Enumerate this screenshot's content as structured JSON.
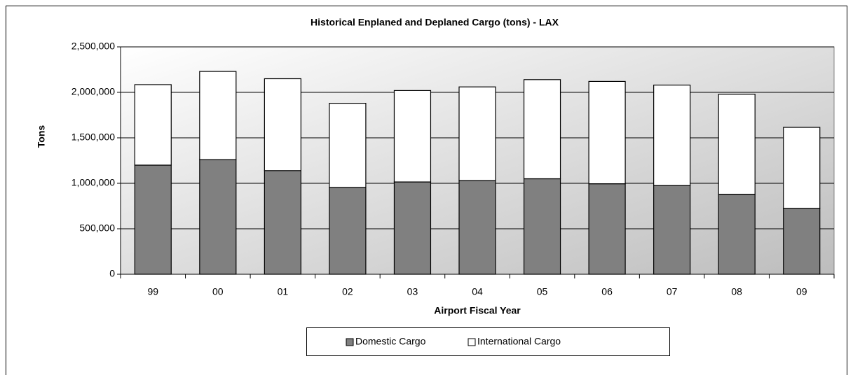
{
  "chart_data": {
    "type": "stacked_bar",
    "title": "Historical Enplaned and Deplaned Cargo (tons) - LAX",
    "x_label": "Airport Fiscal Year",
    "y_label": "Tons",
    "categories": [
      "99",
      "00",
      "01",
      "02",
      "03",
      "04",
      "05",
      "06",
      "07",
      "08",
      "09"
    ],
    "series": [
      {
        "name": "Domestic Cargo",
        "color": "#808080",
        "values": [
          1200000,
          1260000,
          1140000,
          955000,
          1015000,
          1030000,
          1050000,
          995000,
          975000,
          880000,
          725000
        ]
      },
      {
        "name": "International Cargo",
        "color": "#ffffff",
        "values": [
          885000,
          970000,
          1010000,
          925000,
          1005000,
          1030000,
          1090000,
          1125000,
          1105000,
          1100000,
          890000
        ]
      }
    ],
    "ylim": [
      0,
      2500000
    ],
    "yticks": [
      0,
      {
        "value": 500000,
        "label": "500,000"
      },
      {
        "value": 1000000,
        "label": "1,000,000"
      },
      {
        "value": 1500000,
        "label": "1,500,000"
      },
      {
        "value": 2000000,
        "label": "2,000,000"
      },
      {
        "value": 2500000,
        "label": "2,500,000"
      }
    ],
    "grid": true,
    "legend": "bottom"
  }
}
